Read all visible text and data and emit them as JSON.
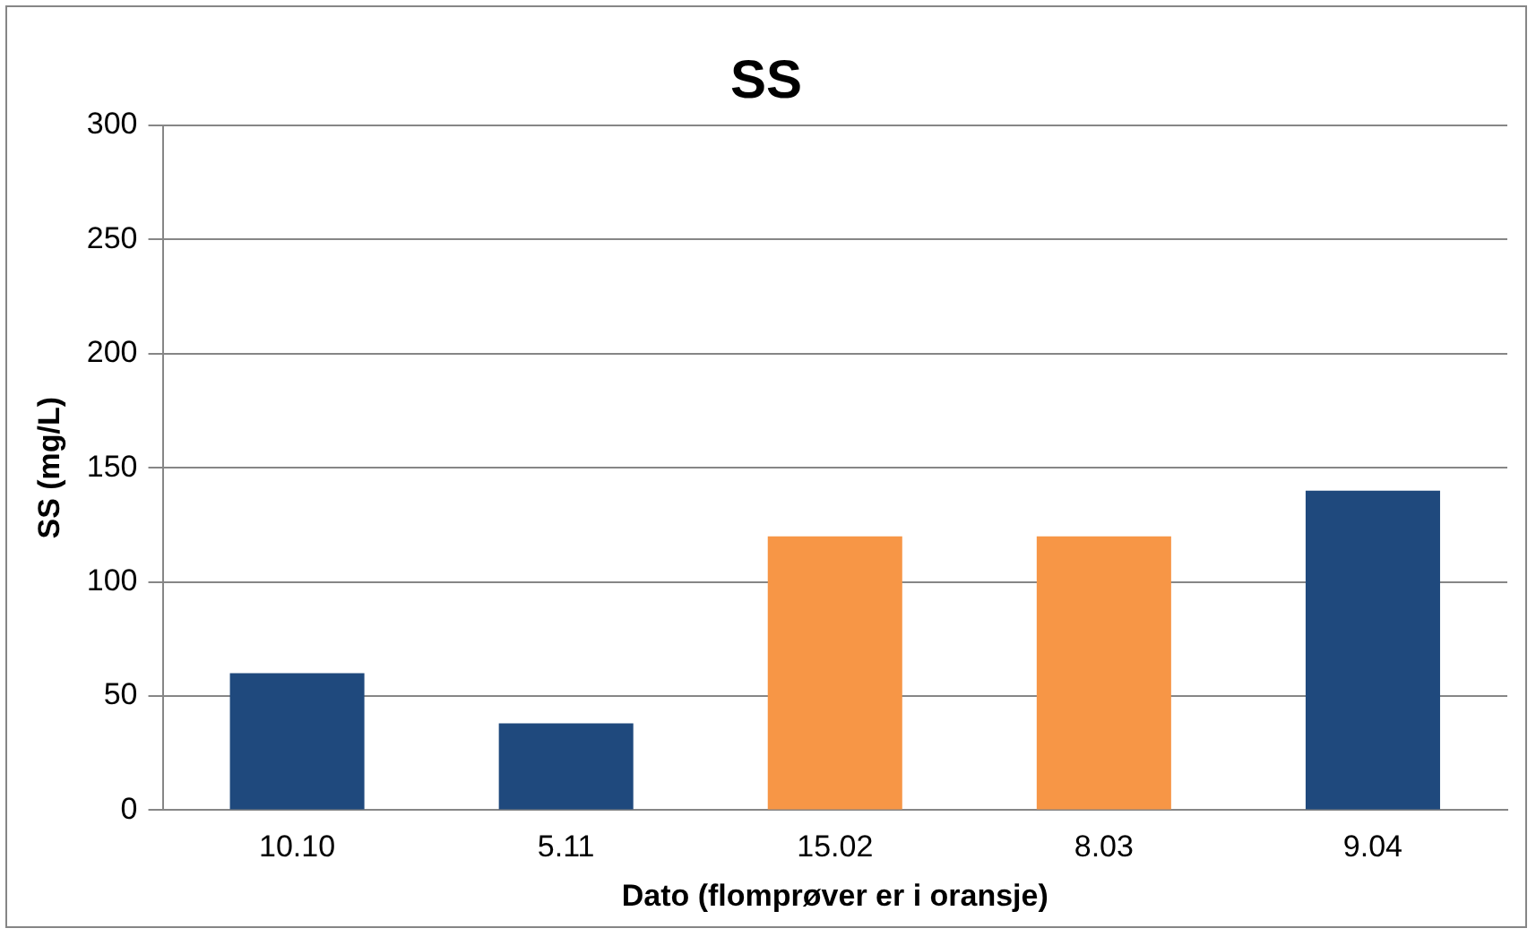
{
  "chart_data": {
    "type": "bar",
    "title": "SS",
    "xlabel": "Dato (flomprøver er i oransje)",
    "ylabel": "SS (mg/L)",
    "categories": [
      "10.10",
      "5.11",
      "15.02",
      "8.03",
      "9.04"
    ],
    "values": [
      60,
      38,
      120,
      120,
      140
    ],
    "colors": [
      "#1f497d",
      "#1f497d",
      "#f79646",
      "#f79646",
      "#1f497d"
    ],
    "ylim": [
      0,
      300
    ],
    "yticks": [
      0,
      50,
      100,
      150,
      200,
      250,
      300
    ],
    "grid": "y",
    "legend": false
  }
}
